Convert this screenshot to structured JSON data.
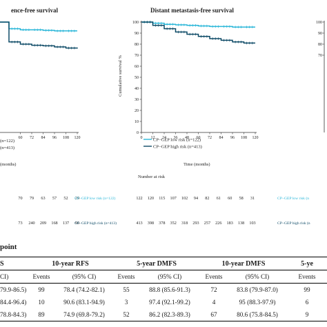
{
  "chart_data": [
    {
      "type": "line",
      "title": "ence-free survival",
      "xlabel": "(months)",
      "ylabel": "",
      "xlim": [
        0,
        120
      ],
      "ylim": [
        0,
        100
      ],
      "x_ticks_visible": [
        "60",
        "72",
        "84",
        "96",
        "108",
        "120"
      ],
      "legend": [
        "(n=122)",
        "(n=413)"
      ],
      "series": [
        {
          "name": "(n=122)",
          "color": "#29b6d8",
          "x": [
            0,
            48,
            60,
            72,
            84,
            96,
            108,
            120
          ],
          "y": [
            100,
            94,
            93,
            93,
            92.5,
            92,
            92,
            92
          ]
        },
        {
          "name": "(n=413)",
          "color": "#0d4a66",
          "x": [
            0,
            48,
            60,
            72,
            84,
            96,
            108,
            120
          ],
          "y": [
            100,
            82,
            80,
            79,
            78.5,
            77.5,
            76.5,
            76
          ]
        }
      ],
      "risk_table": {
        "low": [
          "70",
          "79",
          "63",
          "57",
          "52",
          "29"
        ],
        "high": [
          "73",
          "240",
          "209",
          "168",
          "137",
          "96"
        ]
      }
    },
    {
      "type": "line",
      "title": "Distant metastasis-free survival",
      "xlabel": "Time (months)",
      "ylabel": "Cumulative survival %",
      "xlim": [
        0,
        120
      ],
      "ylim": [
        0,
        100
      ],
      "x_ticks": [
        "0",
        "12",
        "24",
        "36",
        "48",
        "60",
        "72",
        "84",
        "96",
        "108",
        "120"
      ],
      "y_ticks": [
        "0",
        "10",
        "20",
        "30",
        "40",
        "50",
        "60",
        "70",
        "80",
        "90",
        "100"
      ],
      "legend": [
        "CP−GEP low risk (n=122)",
        "CP−GEP high risk (n=413)"
      ],
      "series": [
        {
          "name": "CP−GEP low risk (n=122)",
          "color": "#29b6d8",
          "x": [
            0,
            12,
            24,
            36,
            48,
            60,
            72,
            84,
            96,
            108,
            120
          ],
          "y": [
            100,
            99,
            98,
            97.5,
            97,
            96.5,
            96,
            96,
            95.5,
            95.5,
            95.5
          ]
        },
        {
          "name": "CP−GEP high risk (n=413)",
          "color": "#0d4a66",
          "x": [
            0,
            12,
            24,
            36,
            48,
            60,
            72,
            84,
            96,
            108,
            120
          ],
          "y": [
            100,
            97,
            94,
            91,
            89,
            87,
            85,
            83.5,
            82,
            81,
            81
          ]
        }
      ],
      "risk_table": {
        "title": "Number at risk",
        "low_label": "CP−GEP low risk  (n=122)",
        "high_label": "CP−GEP high risk  (n=413)",
        "low": [
          "122",
          "120",
          "115",
          "107",
          "102",
          "94",
          "82",
          "61",
          "60",
          "58",
          "31"
        ],
        "high": [
          "413",
          "398",
          "378",
          "352",
          "318",
          "293",
          "257",
          "226",
          "183",
          "138",
          "103"
        ]
      }
    },
    {
      "type": "line",
      "title": "",
      "y_ticks_visible": [
        "100",
        "90",
        "80",
        "70"
      ],
      "risk_labels": [
        "CP−GEP low risk (n",
        "CP−GEP high risk (n"
      ]
    }
  ],
  "results_table": {
    "caption": "point",
    "headers": [
      "S",
      "10-year RFS",
      "5-year DMFS",
      "10-year DMFS",
      "5-ye"
    ],
    "subheaders": [
      "CI)",
      "Events",
      "(95% CI)",
      "Events",
      "(95% CI)",
      "Events",
      "(95% CI)",
      "Events"
    ],
    "rows": [
      [
        "79.9-86.5)",
        "99",
        "78.4 (74.2-82.1)",
        "55",
        "88.8 (85.6-91.3)",
        "72",
        "83.8 (79.9-87.0)",
        "99"
      ],
      [
        "84.4-96.4)",
        "10",
        "90.6 (83.1-94.9)",
        "3",
        "97.4 (92.1-99.2)",
        "4",
        "95 (88.3-97.9)",
        "6"
      ],
      [
        "78.8-84.3)",
        "89",
        "74.9 (69.8-79.2)",
        "52",
        "86.2 (82.3-89.3)",
        "67",
        "80.6 (75.8-84.5)",
        "9"
      ]
    ]
  }
}
